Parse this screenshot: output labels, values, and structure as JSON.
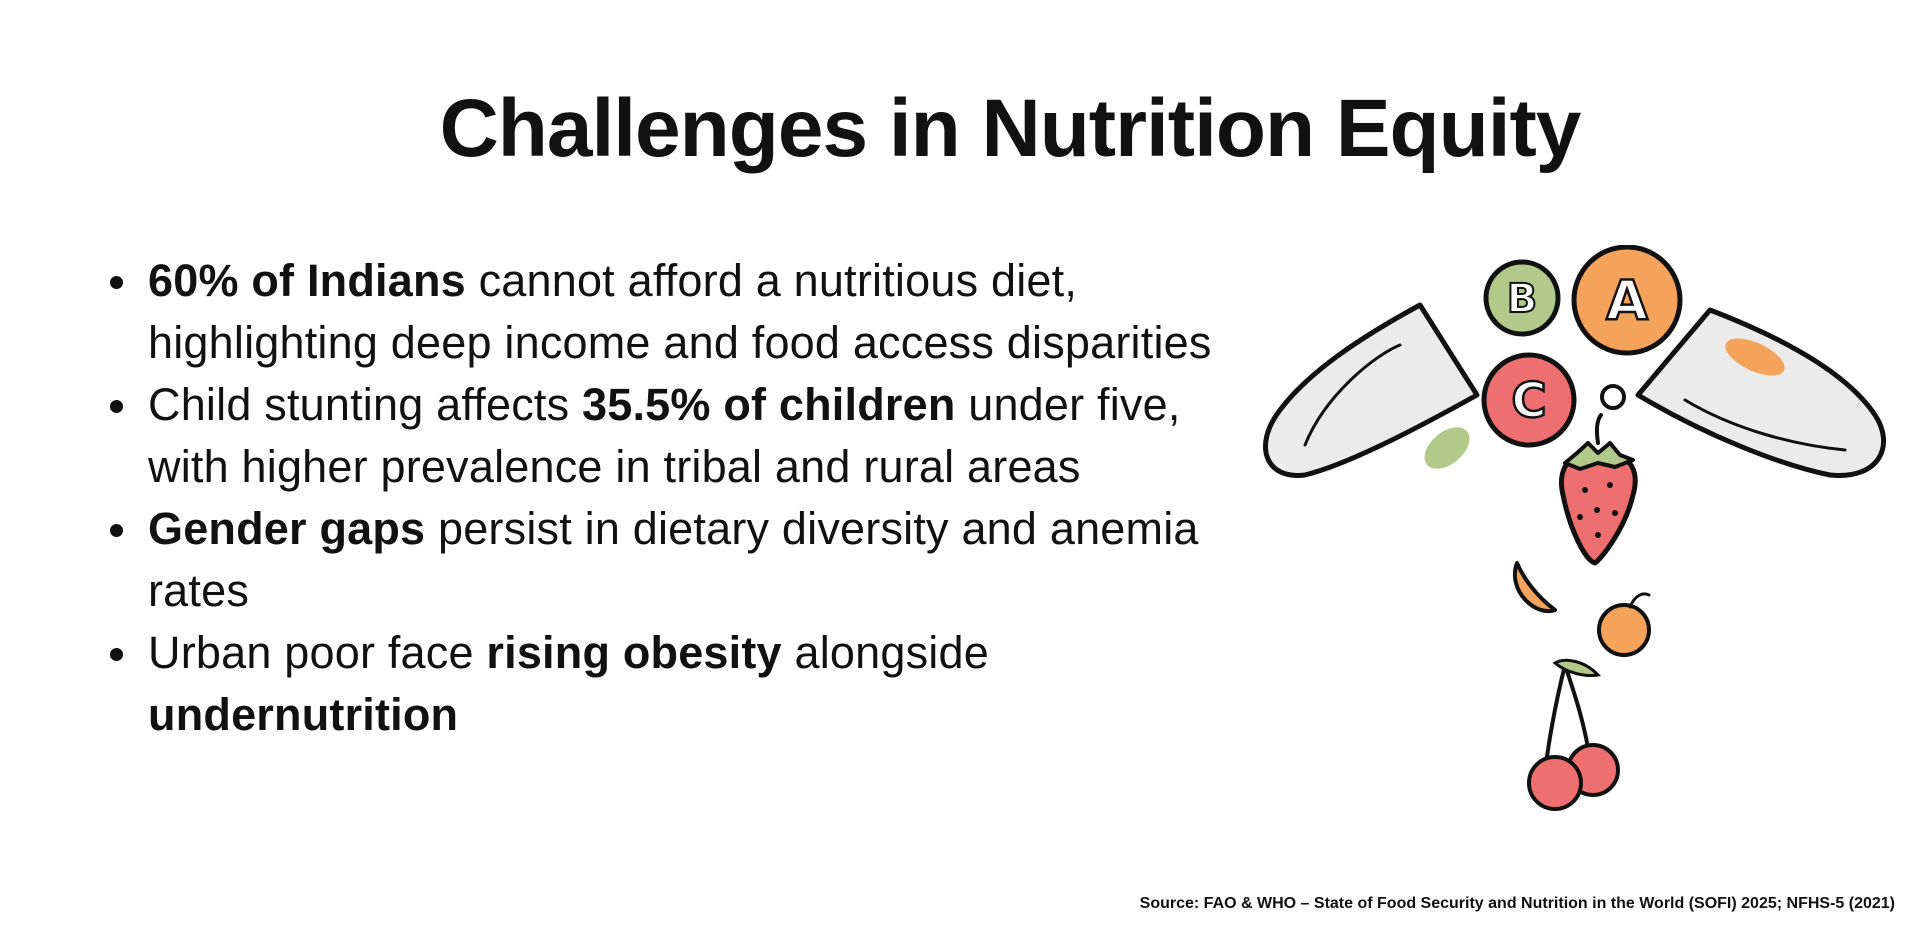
{
  "title": "Challenges in Nutrition Equity",
  "bullets": [
    {
      "bold_1": "60% of Indians",
      "text_1": " cannot afford a nutritious diet, highlighting deep income and food access disparities"
    },
    {
      "text_1": "Child stunting affects ",
      "bold_1": "35.5% of children",
      "text_2": " under five, with higher prevalence in tribal and rural areas"
    },
    {
      "bold_1": "Gender gaps",
      "text_1": " persist in dietary diversity and anemia rates"
    },
    {
      "text_1": "Urban poor face ",
      "bold_1": "rising obesity",
      "text_2": " alongside ",
      "bold_2": "undernutrition"
    }
  ],
  "source": "Source: FAO & WHO – State of Food Security and Nutrition in the World (SOFI) 2025; NFHS-5 (2021)",
  "illustration": {
    "vitamin_letters": [
      "B",
      "A",
      "C"
    ],
    "icons": [
      "capsule-icon",
      "strawberry-icon",
      "orange-slice-icon",
      "orange-icon",
      "cherries-icon"
    ],
    "colors": {
      "capsule": "#ebebeb",
      "vitamin_b": "#b3c98a",
      "vitamin_a": "#f5a35a",
      "vitamin_c": "#ee6f6f",
      "strawberry": "#ee6f6f",
      "orange": "#f5a35a",
      "cherry": "#ee6f6f"
    }
  }
}
